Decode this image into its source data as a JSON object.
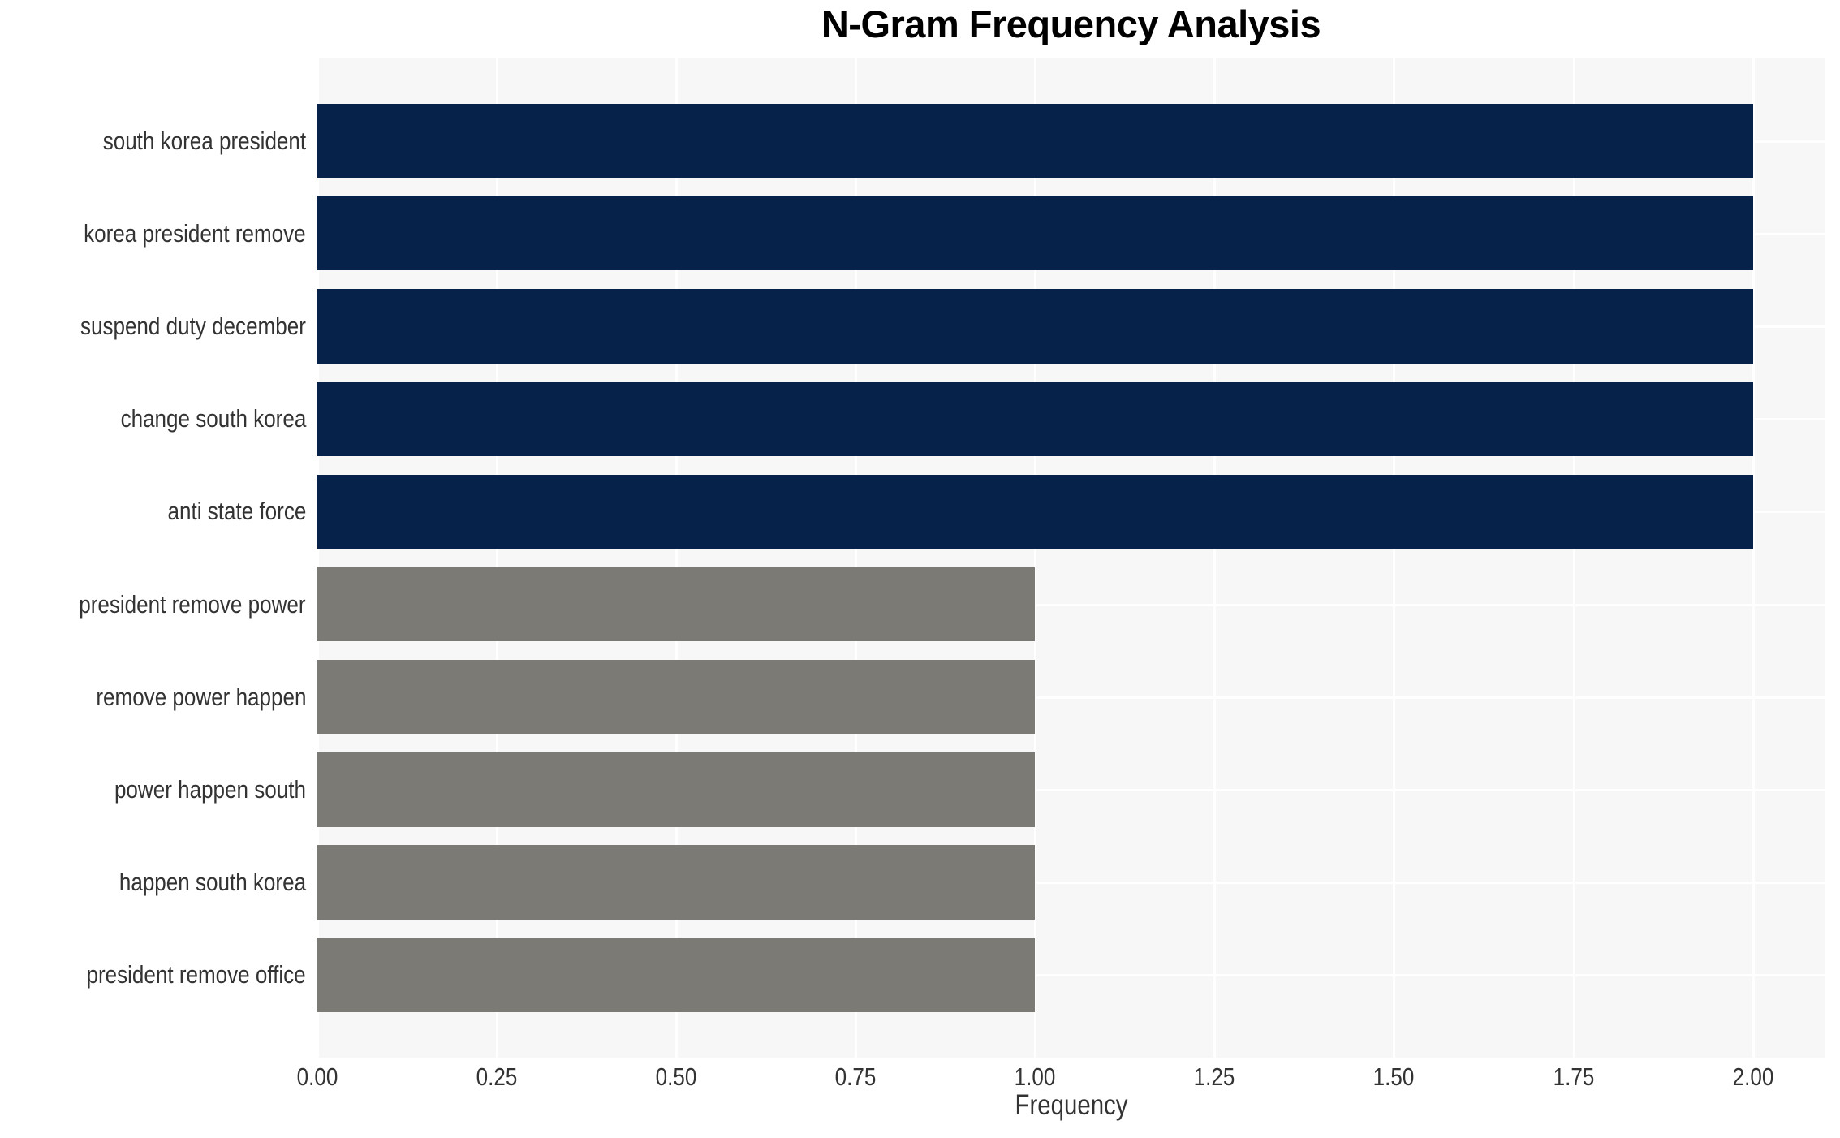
{
  "chart_data": {
    "type": "bar",
    "orientation": "horizontal",
    "title": "N-Gram Frequency Analysis",
    "xlabel": "Frequency",
    "ylabel": "",
    "categories": [
      "south korea president",
      "korea president remove",
      "suspend duty december",
      "change south korea",
      "anti state force",
      "president remove power",
      "remove power happen",
      "power happen south",
      "happen south korea",
      "president remove office"
    ],
    "values": [
      2,
      2,
      2,
      2,
      2,
      1,
      1,
      1,
      1,
      1
    ],
    "bar_colors": [
      "#07224a",
      "#07224a",
      "#07224a",
      "#07224a",
      "#07224a",
      "#7b7a75",
      "#7b7a75",
      "#7b7a75",
      "#7b7a75",
      "#7b7a75"
    ],
    "xlim": [
      0,
      2.1
    ],
    "xticks": [
      0,
      0.25,
      0.5,
      0.75,
      1,
      1.25,
      1.5,
      1.75,
      2
    ],
    "xtick_labels": [
      "0.00",
      "0.25",
      "0.50",
      "0.75",
      "1.00",
      "1.25",
      "1.50",
      "1.75",
      "2.00"
    ],
    "grid": true,
    "legend": false,
    "plot_background": "#f7f7f7",
    "grid_color": "#ffffff",
    "text_color": "#333333",
    "title_color": "#000000"
  }
}
